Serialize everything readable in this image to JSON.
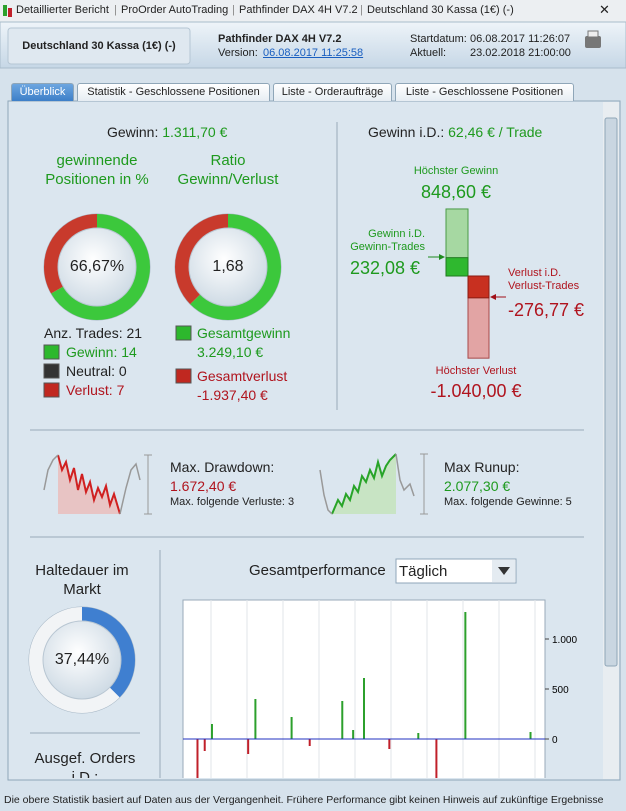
{
  "titlebar": {
    "items": [
      "Detaillierter Bericht",
      "ProOrder AutoTrading",
      "Pathfinder DAX 4H V7.2",
      "Deutschland 30 Kassa (1€) (-)"
    ]
  },
  "header": {
    "instrument": "Deutschland 30 Kassa (1€) (-)",
    "system": "Pathfinder DAX 4H V7.2",
    "version_label": "Version:",
    "version": "06.08.2017 11:25:58",
    "start_label": "Startdatum:",
    "start": "06.08.2017 11:26:07",
    "current_label": "Aktuell:",
    "current": "23.02.2018 21:00:00"
  },
  "tabs": [
    "Überblick",
    "Statistik - Geschlossene Positionen",
    "Liste - Orderaufträge",
    "Liste - Geschlossene Positionen"
  ],
  "summary": {
    "gain_label": "Gewinn:",
    "gain": "1.311,70 €",
    "winning_title": "gewinnende Positionen in %",
    "winning_pct": {
      "value": 66.67,
      "label": "66,67%"
    },
    "ratio_title": "Ratio Gewinn/Verlust",
    "ratio": "1,68",
    "trades_label": "Anz. Trades: 21",
    "win_count": "Gewinn: 14",
    "neutral_count": "Neutral: 0",
    "loss_count": "Verlust: 7",
    "gross_gain_label": "Gesamtgewinn",
    "gross_gain": {
      "value": 3249.1,
      "label": "3.249,10 €"
    },
    "gross_loss_label": "Gesamtverlust",
    "gross_loss": {
      "value": -1937.4,
      "label": "-1.937,40 €"
    }
  },
  "per_trade": {
    "label": "Gewinn i.D.:",
    "value": "62,46 € / Trade",
    "best_label": "Höchster Gewinn",
    "best": {
      "value": 848.6,
      "label": "848,60 €"
    },
    "avg_win_label": "Gewinn i.D. Gewinn-Trades",
    "avg_win": {
      "value": 232.08,
      "label": "232,08 €"
    },
    "avg_loss_label": "Verlust i.D. Verlust-Trades",
    "avg_loss": {
      "value": -276.77,
      "label": "-276,77 €"
    },
    "worst_label": "Höchster Verlust",
    "worst": {
      "value": -1040.0,
      "label": "-1.040,00 €"
    }
  },
  "drawdown": {
    "label": "Max. Drawdown:",
    "value": "1.672,40 €",
    "note": "Max. folgende Verluste: 3"
  },
  "runup": {
    "label": "Max Runup:",
    "value": "2.077,30 €",
    "note": "Max. folgende Gewinne: 5"
  },
  "holding": {
    "title": "Haltedauer im Markt",
    "pct": {
      "value": 37.44,
      "label": "37,44%"
    },
    "orders_title": "Ausgef. Orders i.D.:"
  },
  "chart_data": {
    "type": "bar",
    "title": "Gesamtperformance",
    "period": "Täglich",
    "x": [
      4,
      6,
      8,
      18,
      20,
      30,
      35,
      44,
      47,
      50,
      57,
      65,
      70,
      78,
      96
    ],
    "values": [
      -450,
      -120,
      150,
      -150,
      400,
      220,
      -70,
      380,
      90,
      610,
      -100,
      60,
      -450,
      1270,
      70
    ],
    "xlim": [
      0,
      100
    ],
    "ylim": [
      -390,
      1390
    ],
    "yticks": [
      0,
      500,
      {
        "value": 1000,
        "label": "1.000"
      }
    ],
    "colors": {
      "positive": "#2ca02c",
      "negative": "#c0202a",
      "zero_line": "#2030c0"
    }
  },
  "footer": "Die obere Statistik basiert auf Daten aus der Vergangenheit. Frühere Performance gibt keinen Hinweis auf zukünftige Ergebnisse"
}
